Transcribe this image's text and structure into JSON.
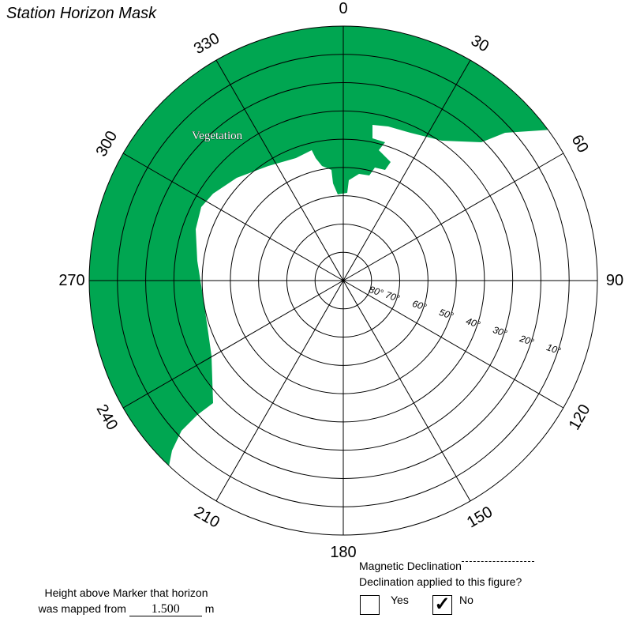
{
  "title": "Station Horizon Mask",
  "azimuth_labels": [
    "0",
    "30",
    "60",
    "90",
    "120",
    "150",
    "180",
    "210",
    "240",
    "270",
    "300",
    "330"
  ],
  "elevation_labels": [
    "80°",
    "70°",
    "60°",
    "50°",
    "40°",
    "30°",
    "20°",
    "10°"
  ],
  "obstruction_label": "Vegetation",
  "colors": {
    "obstruction": "#00a651",
    "grid": "#000000"
  },
  "footer": {
    "height_line1": "Height above Marker that horizon",
    "height_line2_prefix": "was mapped from",
    "height_value": "1.500",
    "height_unit": "m",
    "magnetic_declination_label": "Magnetic Declination",
    "declination_applied_question": "Declination applied to this figure?",
    "yes_label": "Yes",
    "no_label": "No",
    "yes_checked": false,
    "no_checked": true,
    "check_glyph": "✓"
  }
}
